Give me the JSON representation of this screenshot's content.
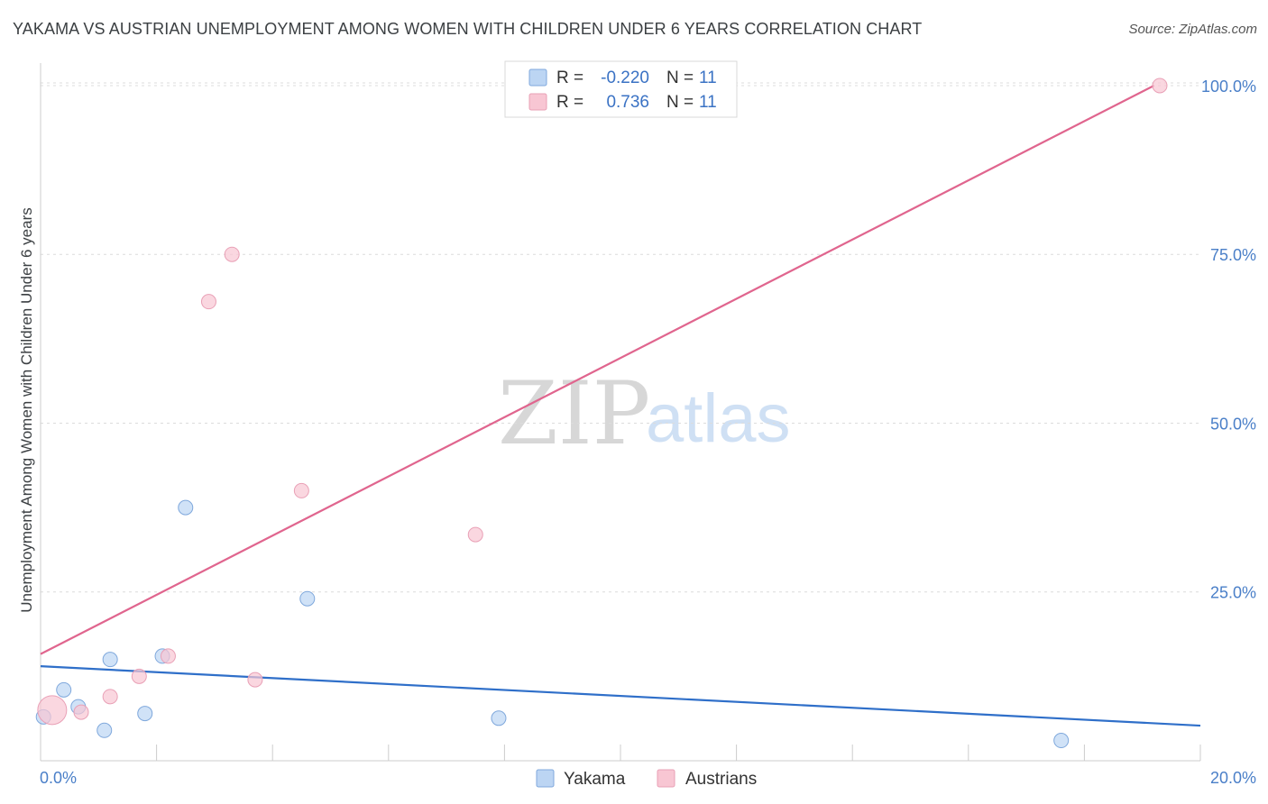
{
  "header": {
    "title": "YAKAMA VS AUSTRIAN UNEMPLOYMENT AMONG WOMEN WITH CHILDREN UNDER 6 YEARS CORRELATION CHART",
    "source": "Source: ZipAtlas.com"
  },
  "watermark": {
    "zip": "ZIP",
    "atlas": "atlas"
  },
  "legend_box": {
    "rows": [
      {
        "r_label": "R =",
        "r_value": "-0.220",
        "n_label": "N =",
        "n_value": "11",
        "color": "#a9c8f0"
      },
      {
        "r_label": "R =",
        "r_value": "0.736",
        "n_label": "N =",
        "n_value": "11",
        "color": "#f6b8c9"
      }
    ]
  },
  "bottom_legend": {
    "yakama": "Yakama",
    "austrians": "Austrians"
  },
  "colors": {
    "yakama_fill": "#bcd5f3",
    "yakama_stroke": "#7fa8dc",
    "yakama_line": "#2f6fc9",
    "austrians_fill": "#f8c6d3",
    "austrians_stroke": "#e9a0b6",
    "austrians_line": "#e0658e",
    "tick_text": "#4a7fc8",
    "grid": "#dcdcdc"
  },
  "chart_data": {
    "type": "scatter",
    "title": "YAKAMA VS AUSTRIAN UNEMPLOYMENT AMONG WOMEN WITH CHILDREN UNDER 6 YEARS CORRELATION CHART",
    "xlabel": "",
    "ylabel": "Unemployment Among Women with Children Under 6 years",
    "xlim": [
      0,
      20
    ],
    "ylim": [
      0,
      102
    ],
    "x_ticks": [
      0,
      20
    ],
    "x_tick_labels": [
      "0.0%",
      "20.0%"
    ],
    "y_ticks": [
      25,
      50,
      75,
      100
    ],
    "y_tick_labels": [
      "25.0%",
      "50.0%",
      "75.0%",
      "100.0%"
    ],
    "series": [
      {
        "name": "Yakama",
        "r": -0.22,
        "n": 11,
        "points": [
          {
            "x": 0.05,
            "y": 6.5
          },
          {
            "x": 0.4,
            "y": 10.5
          },
          {
            "x": 0.65,
            "y": 8.0
          },
          {
            "x": 1.1,
            "y": 4.5
          },
          {
            "x": 1.2,
            "y": 15.0
          },
          {
            "x": 1.8,
            "y": 7.0
          },
          {
            "x": 2.1,
            "y": 15.5
          },
          {
            "x": 2.5,
            "y": 37.5
          },
          {
            "x": 4.6,
            "y": 24.0
          },
          {
            "x": 7.9,
            "y": 6.3
          },
          {
            "x": 17.6,
            "y": 3.0
          }
        ],
        "trend": {
          "x0": 0,
          "y0": 14.0,
          "x1": 20,
          "y1": 5.2
        }
      },
      {
        "name": "Austrians",
        "r": 0.736,
        "n": 11,
        "points": [
          {
            "x": 0.2,
            "y": 7.5,
            "large": true
          },
          {
            "x": 0.7,
            "y": 7.2
          },
          {
            "x": 1.2,
            "y": 9.5
          },
          {
            "x": 1.7,
            "y": 12.5
          },
          {
            "x": 2.2,
            "y": 15.5
          },
          {
            "x": 2.9,
            "y": 68.0
          },
          {
            "x": 3.3,
            "y": 75.0
          },
          {
            "x": 3.7,
            "y": 12.0
          },
          {
            "x": 4.5,
            "y": 40.0
          },
          {
            "x": 7.5,
            "y": 33.5
          },
          {
            "x": 19.3,
            "y": 100.0
          }
        ],
        "trend": {
          "x0": 0,
          "y0": 15.8,
          "x1": 19.2,
          "y1": 100.0
        }
      }
    ]
  }
}
